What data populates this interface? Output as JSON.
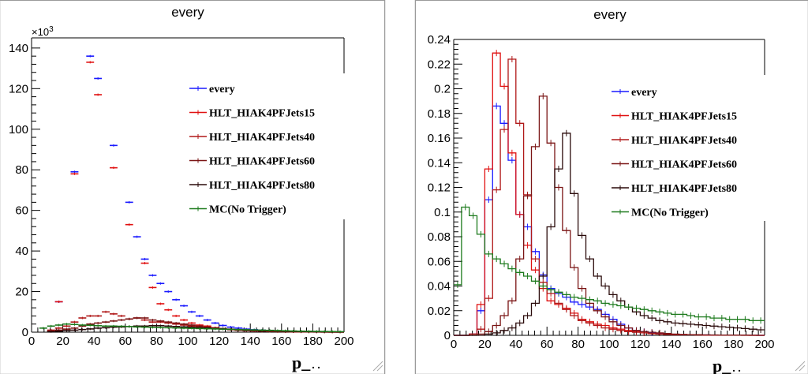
{
  "colors": {
    "every": "#1a1aff",
    "hlt15": "#e01010",
    "hlt40": "#b01818",
    "hlt60": "#7a1414",
    "hlt80": "#2a0a0a",
    "mc": "#1d7a1d"
  },
  "chart_data": [
    {
      "type": "scatter",
      "title": "every",
      "xlabel": "p_",
      "xlabel_suffix": ". .",
      "ylabel": "",
      "y_multiplier_label": "×10",
      "y_multiplier_exp": "3",
      "xlim": [
        0,
        200
      ],
      "ylim": [
        0,
        145
      ],
      "x_ticks": [
        "0",
        "20",
        "40",
        "60",
        "80",
        "100",
        "120",
        "140",
        "160",
        "180",
        "200"
      ],
      "y_ticks": [
        "0",
        "20",
        "40",
        "60",
        "80",
        "100",
        "120",
        "140"
      ],
      "legend": [
        "every",
        "HLT_HIAK4PFJets15",
        "HLT_HIAK4PFJets40",
        "HLT_HIAK4PFJets60",
        "HLT_HIAK4PFJets80",
        "MC(No Trigger)"
      ],
      "bin_edges": [
        0,
        5,
        10,
        15,
        20,
        25,
        30,
        35,
        40,
        45,
        50,
        55,
        60,
        65,
        70,
        75,
        80,
        85,
        90,
        95,
        100,
        105,
        110,
        115,
        120,
        125,
        130,
        135,
        140,
        145,
        150,
        155,
        160,
        165,
        170,
        175,
        180,
        185,
        190,
        195,
        200
      ],
      "series": [
        {
          "name": "every",
          "color_key": "every",
          "values": [
            null,
            null,
            null,
            15,
            null,
            79,
            null,
            136,
            125,
            null,
            92,
            null,
            64,
            47,
            36,
            28,
            24,
            20,
            16,
            13,
            10,
            8,
            6,
            4.5,
            3.3,
            2.5,
            2,
            1.5,
            1.2,
            1,
            0.8,
            0.6,
            0.5,
            0.4,
            0.3,
            0.25,
            0.2,
            0.15,
            0.12,
            0.1
          ]
        },
        {
          "name": "HLT_HIAK4PFJets15",
          "color_key": "hlt15",
          "values": [
            null,
            null,
            null,
            15,
            null,
            78,
            null,
            133,
            117,
            null,
            81,
            null,
            53,
            null,
            34,
            22,
            14,
            11,
            8,
            6,
            4.5,
            3.5,
            3,
            2.2,
            1.7,
            1.3,
            1,
            0.8,
            0.6,
            0.5,
            0.4,
            0.3,
            0.25,
            0.2,
            0.15,
            0.12,
            0.1,
            0.08,
            0.06,
            0.05
          ]
        },
        {
          "name": "HLT_HIAK4PFJets40",
          "color_key": "hlt40",
          "values": [
            null,
            null,
            1,
            2,
            3,
            5,
            7,
            8,
            8,
            10,
            9,
            8,
            6.5,
            7,
            6,
            5,
            5,
            4.5,
            4,
            3.5,
            3,
            2.5,
            2.2,
            1.8,
            1.5,
            1.2,
            1,
            0.8,
            0.7,
            0.5,
            0.4,
            0.3,
            0.3,
            0.2,
            0.15,
            0.12,
            0.1,
            0.08,
            0.06,
            0.05
          ]
        },
        {
          "name": "HLT_HIAK4PFJets60",
          "color_key": "hlt60",
          "values": [
            null,
            null,
            0.5,
            1,
            1.5,
            2,
            3,
            4,
            4.5,
            5,
            5.5,
            6,
            6.5,
            7,
            7,
            6,
            5.5,
            5,
            4.5,
            4,
            3.5,
            3,
            2.5,
            2,
            1.8,
            1.5,
            1.2,
            1,
            0.8,
            0.6,
            0.5,
            0.4,
            0.3,
            0.25,
            0.2,
            0.15,
            0.12,
            0.1,
            0.08,
            0.06
          ]
        },
        {
          "name": "HLT_HIAK4PFJets80",
          "color_key": "hlt80",
          "values": [
            null,
            null,
            0.3,
            0.5,
            0.8,
            1,
            1.3,
            1.6,
            2,
            2.2,
            2.5,
            2.6,
            2.8,
            3,
            3,
            3.2,
            3.2,
            3,
            2.8,
            2.6,
            2.4,
            2.2,
            2,
            1.8,
            1.6,
            1.4,
            1.2,
            1,
            0.9,
            0.8,
            0.7,
            0.6,
            0.5,
            0.4,
            0.35,
            0.3,
            0.25,
            0.2,
            0.18,
            0.15
          ]
        },
        {
          "name": "MC(No Trigger)",
          "color_key": "mc",
          "values": [
            null,
            2,
            3,
            3.5,
            4,
            3.8,
            3.5,
            3.4,
            3.2,
            3,
            3,
            2.9,
            2.8,
            2.6,
            2.5,
            2.4,
            2.3,
            2.2,
            2.1,
            2,
            1.9,
            1.8,
            1.7,
            1.6,
            1.5,
            1.4,
            1.3,
            1.2,
            1.1,
            1,
            0.9,
            0.8,
            0.7,
            0.6,
            0.5,
            0.45,
            0.4,
            0.35,
            0.3,
            0.25
          ]
        }
      ]
    },
    {
      "type": "line",
      "title": "every",
      "xlabel": "p_",
      "xlabel_suffix": ". .",
      "ylabel": "",
      "xlim": [
        0,
        200
      ],
      "ylim": [
        0,
        0.24
      ],
      "x_ticks": [
        "0",
        "20",
        "40",
        "60",
        "80",
        "100",
        "120",
        "140",
        "160",
        "180",
        "200"
      ],
      "y_ticks": [
        "0",
        "0.02",
        "0.04",
        "0.06",
        "0.08",
        "0.1",
        "0.12",
        "0.14",
        "0.16",
        "0.18",
        "0.2",
        "0.22",
        "0.24"
      ],
      "legend": [
        "every",
        "HLT_HIAK4PFJets15",
        "HLT_HIAK4PFJets40",
        "HLT_HIAK4PFJets60",
        "HLT_HIAK4PFJets80",
        "MC(No Trigger)"
      ],
      "bin_edges": [
        0,
        5,
        10,
        15,
        20,
        25,
        30,
        35,
        40,
        45,
        50,
        55,
        60,
        65,
        70,
        75,
        80,
        85,
        90,
        95,
        100,
        105,
        110,
        115,
        120,
        125,
        130,
        135,
        140,
        145,
        150,
        155,
        160,
        165,
        170,
        175,
        180,
        185,
        190,
        195,
        200
      ],
      "series": [
        {
          "name": "every",
          "color_key": "every",
          "values": [
            0,
            0,
            0.001,
            0.02,
            0.11,
            0.186,
            0.172,
            0.142,
            0.098,
            0.088,
            0.068,
            0.049,
            0.038,
            0.034,
            0.031,
            0.027,
            0.025,
            0.023,
            0.021,
            0.017,
            0.013,
            0.009,
            0.006,
            0.004,
            0.003,
            0.002,
            0.0015,
            0.001,
            0.0008,
            0.0006,
            0.0005,
            0.0004,
            0.0003,
            0.0002,
            0.0002,
            0.0001,
            0.0001,
            0.0001,
            0.0001,
            0
          ]
        },
        {
          "name": "HLT_HIAK4PFJets15",
          "color_key": "hlt15",
          "values": [
            0,
            0,
            0.001,
            0.025,
            0.135,
            0.229,
            0.202,
            0.148,
            0.098,
            0.073,
            0.053,
            0.038,
            0.028,
            0.025,
            0.022,
            0.018,
            0.013,
            0.011,
            0.009,
            0.008,
            0.006,
            0.005,
            0.004,
            0.003,
            0.002,
            0.0015,
            0.001,
            0.0008,
            0.0006,
            0.0005,
            0.0004,
            0.0003,
            0.0002,
            0.0002,
            0.0001,
            0.0001,
            0.0001,
            0.0001,
            0,
            0
          ]
        },
        {
          "name": "HLT_HIAK4PFJets40",
          "color_key": "hlt40",
          "values": [
            0,
            0,
            0.001,
            0.005,
            0.03,
            0.118,
            0.167,
            0.224,
            0.172,
            0.114,
            0.062,
            0.043,
            0.034,
            0.026,
            0.021,
            0.016,
            0.012,
            0.01,
            0.008,
            0.006,
            0.005,
            0.004,
            0.003,
            0.0025,
            0.002,
            0.0015,
            0.001,
            0.0008,
            0.0006,
            0.0005,
            0.0004,
            0.0003,
            0.0002,
            0.0002,
            0.0001,
            0.0001,
            0.0001,
            0,
            0,
            0
          ]
        },
        {
          "name": "HLT_HIAK4PFJets60",
          "color_key": "hlt60",
          "values": [
            0,
            0,
            0,
            0.001,
            0.003,
            0.008,
            0.016,
            0.028,
            0.062,
            0.113,
            0.153,
            0.194,
            0.156,
            0.12,
            0.085,
            0.055,
            0.038,
            0.026,
            0.02,
            0.015,
            0.011,
            0.008,
            0.006,
            0.004,
            0.003,
            0.0025,
            0.002,
            0.0015,
            0.001,
            0.0008,
            0.0006,
            0.0005,
            0.0004,
            0.0003,
            0.0002,
            0.0002,
            0.0001,
            0.0001,
            0.0001,
            0
          ]
        },
        {
          "name": "HLT_HIAK4PFJets80",
          "color_key": "hlt80",
          "values": [
            0,
            0,
            0,
            0,
            0.001,
            0.002,
            0.004,
            0.006,
            0.01,
            0.016,
            0.026,
            0.048,
            0.088,
            0.135,
            0.164,
            0.115,
            0.081,
            0.062,
            0.048,
            0.04,
            0.033,
            0.028,
            0.023,
            0.019,
            0.016,
            0.014,
            0.012,
            0.011,
            0.01,
            0.0095,
            0.009,
            0.0085,
            0.008,
            0.0075,
            0.007,
            0.0065,
            0.006,
            0.0055,
            0.005,
            0.0045
          ]
        },
        {
          "name": "MC(No Trigger)",
          "color_key": "mc",
          "values": [
            0.041,
            0.104,
            0.097,
            0.082,
            0.066,
            0.062,
            0.058,
            0.054,
            0.051,
            0.048,
            0.044,
            0.04,
            0.037,
            0.035,
            0.033,
            0.031,
            0.03,
            0.029,
            0.028,
            0.026,
            0.025,
            0.024,
            0.023,
            0.022,
            0.021,
            0.02,
            0.019,
            0.018,
            0.017,
            0.017,
            0.016,
            0.015,
            0.015,
            0.014,
            0.014,
            0.013,
            0.013,
            0.013,
            0.012,
            0.012
          ]
        }
      ]
    }
  ]
}
